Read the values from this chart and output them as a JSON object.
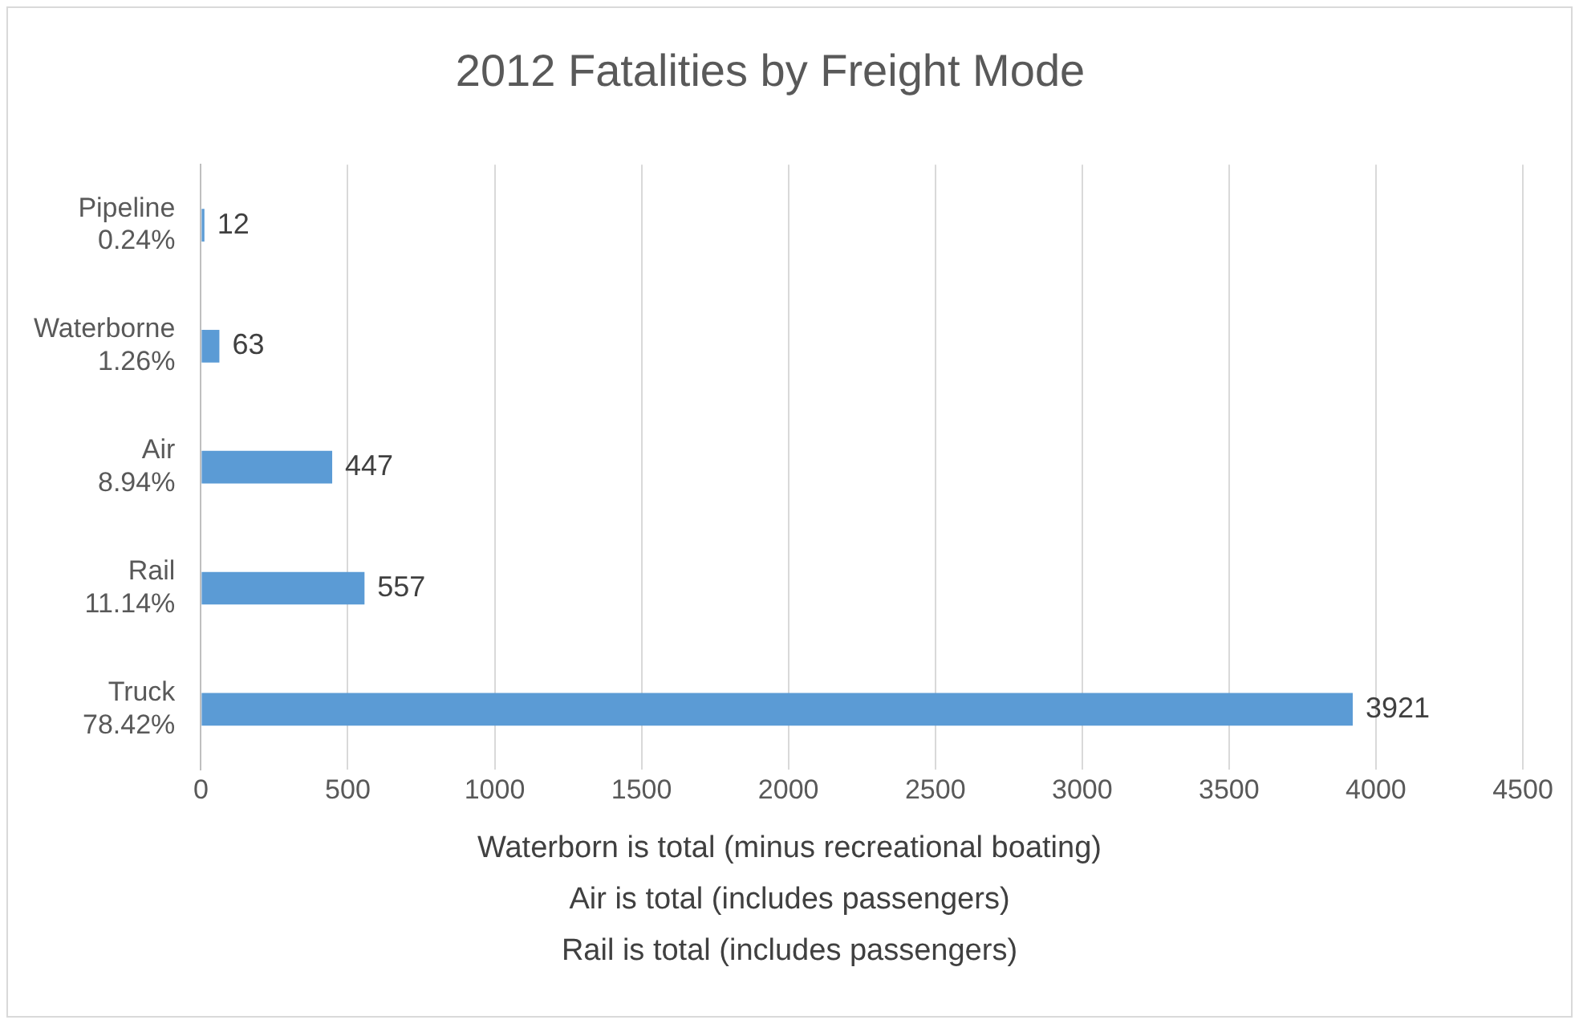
{
  "chart_data": {
    "type": "bar",
    "orientation": "horizontal",
    "title": "2012 Fatalities by Freight Mode",
    "categories": [
      "Pipeline\n0.24%",
      "Waterborne\n1.26%",
      "Air\n8.94%",
      "Rail\n11.14%",
      "Truck\n78.42%"
    ],
    "values": [
      12,
      63,
      447,
      557,
      3921
    ],
    "color": "#5b9bd5",
    "xlim": [
      0,
      4500
    ],
    "xticks": [
      0,
      500,
      1000,
      1500,
      2000,
      2500,
      3000,
      3500,
      4000,
      4500
    ],
    "grid": "x",
    "legend": false,
    "data_labels": true,
    "annotations": [
      "Waterborn is total (minus recreational boating)",
      "Air is total (includes passengers)",
      "Rail is total (includes passengers)"
    ]
  }
}
